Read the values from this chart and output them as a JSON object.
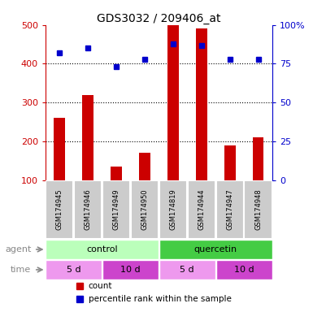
{
  "title": "GDS3032 / 209406_at",
  "samples": [
    "GSM174945",
    "GSM174946",
    "GSM174949",
    "GSM174950",
    "GSM174819",
    "GSM174944",
    "GSM174947",
    "GSM174948"
  ],
  "bar_values": [
    260,
    320,
    135,
    170,
    500,
    490,
    190,
    210
  ],
  "dot_values_pct": [
    82,
    85,
    73,
    78,
    88,
    87,
    78,
    78
  ],
  "bar_color": "#cc0000",
  "dot_color": "#0000cc",
  "ylim_left": [
    100,
    500
  ],
  "ylim_right": [
    0,
    100
  ],
  "yticks_left": [
    100,
    200,
    300,
    400,
    500
  ],
  "yticks_right": [
    0,
    25,
    50,
    75,
    100
  ],
  "ytick_labels_right": [
    "0",
    "25",
    "50",
    "75",
    "100%"
  ],
  "grid_lines": [
    200,
    300,
    400
  ],
  "agent_control_color": "#bbffbb",
  "agent_quercetin_color": "#44cc44",
  "time_5d_color": "#ee99ee",
  "time_10d_color": "#cc44cc",
  "agent_row": [
    [
      "control",
      0,
      4
    ],
    [
      "quercetin",
      4,
      8
    ]
  ],
  "time_row": [
    [
      "5 d",
      0,
      2
    ],
    [
      "10 d",
      2,
      4
    ],
    [
      "5 d",
      4,
      6
    ],
    [
      "10 d",
      6,
      8
    ]
  ],
  "legend_count": "count",
  "legend_pct": "percentile rank within the sample",
  "sample_bg_color": "#cccccc",
  "bar_width": 0.4
}
